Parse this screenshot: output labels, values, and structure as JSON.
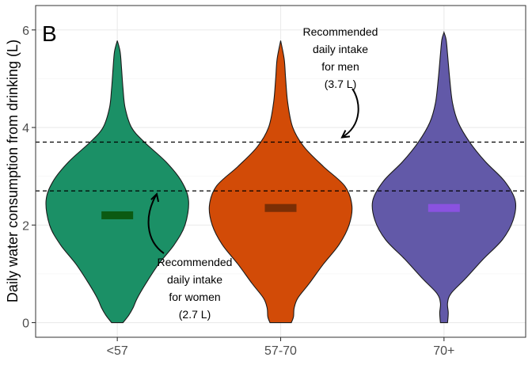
{
  "chart_data": {
    "type": "violin",
    "panel_label": "B",
    "ylabel": "Daily water consumption from drinking (L)",
    "xlabel": "",
    "categories": [
      "<57",
      "57-70",
      "70+"
    ],
    "ylim": [
      -0.3,
      6.5
    ],
    "yticks": [
      0,
      2,
      4,
      6
    ],
    "grid": true,
    "series": [
      {
        "category": "<57",
        "fill": "#1b9066",
        "median_color": "#0b5a12",
        "median": 2.2,
        "min": 0,
        "max": 5.78,
        "density": [
          [
            0.0,
            0.08
          ],
          [
            0.15,
            0.16
          ],
          [
            0.3,
            0.22
          ],
          [
            0.5,
            0.28
          ],
          [
            0.8,
            0.4
          ],
          [
            1.2,
            0.58
          ],
          [
            1.6,
            0.8
          ],
          [
            2.0,
            0.95
          ],
          [
            2.5,
            1.0
          ],
          [
            2.9,
            0.9
          ],
          [
            3.3,
            0.68
          ],
          [
            3.7,
            0.38
          ],
          [
            4.0,
            0.2
          ],
          [
            4.4,
            0.11
          ],
          [
            4.8,
            0.08
          ],
          [
            5.2,
            0.06
          ],
          [
            5.55,
            0.04
          ],
          [
            5.78,
            0.0
          ]
        ]
      },
      {
        "category": "57-70",
        "fill": "#d24b07",
        "median_color": "#7a2e05",
        "median": 2.35,
        "min": 0,
        "max": 5.78,
        "density": [
          [
            0.0,
            0.15
          ],
          [
            0.12,
            0.18
          ],
          [
            0.3,
            0.19
          ],
          [
            0.5,
            0.24
          ],
          [
            0.8,
            0.4
          ],
          [
            1.2,
            0.6
          ],
          [
            1.6,
            0.82
          ],
          [
            2.0,
            0.96
          ],
          [
            2.4,
            1.0
          ],
          [
            2.8,
            0.9
          ],
          [
            3.2,
            0.6
          ],
          [
            3.6,
            0.33
          ],
          [
            4.0,
            0.17
          ],
          [
            4.5,
            0.1
          ],
          [
            5.0,
            0.07
          ],
          [
            5.4,
            0.05
          ],
          [
            5.78,
            0.0
          ]
        ]
      },
      {
        "category": "70+",
        "fill": "#6259a8",
        "median_color": "#8a52e0",
        "median": 2.35,
        "min": 0,
        "max": 5.95,
        "density": [
          [
            0.0,
            0.05
          ],
          [
            0.2,
            0.06
          ],
          [
            0.4,
            0.05
          ],
          [
            0.6,
            0.1
          ],
          [
            0.9,
            0.3
          ],
          [
            1.3,
            0.55
          ],
          [
            1.7,
            0.82
          ],
          [
            2.1,
            0.97
          ],
          [
            2.5,
            1.0
          ],
          [
            2.9,
            0.85
          ],
          [
            3.3,
            0.58
          ],
          [
            3.7,
            0.36
          ],
          [
            4.1,
            0.2
          ],
          [
            4.5,
            0.12
          ],
          [
            5.0,
            0.08
          ],
          [
            5.5,
            0.05
          ],
          [
            5.8,
            0.03
          ],
          [
            5.95,
            0.0
          ]
        ]
      }
    ],
    "reference_lines": [
      {
        "y": 3.7,
        "label_lines": [
          "Recommended",
          "daily intake",
          "for men",
          "(3.7 L)"
        ]
      },
      {
        "y": 2.7,
        "label_lines": [
          "Recommended",
          "daily intake",
          "for women",
          "(2.7 L)"
        ]
      }
    ]
  }
}
